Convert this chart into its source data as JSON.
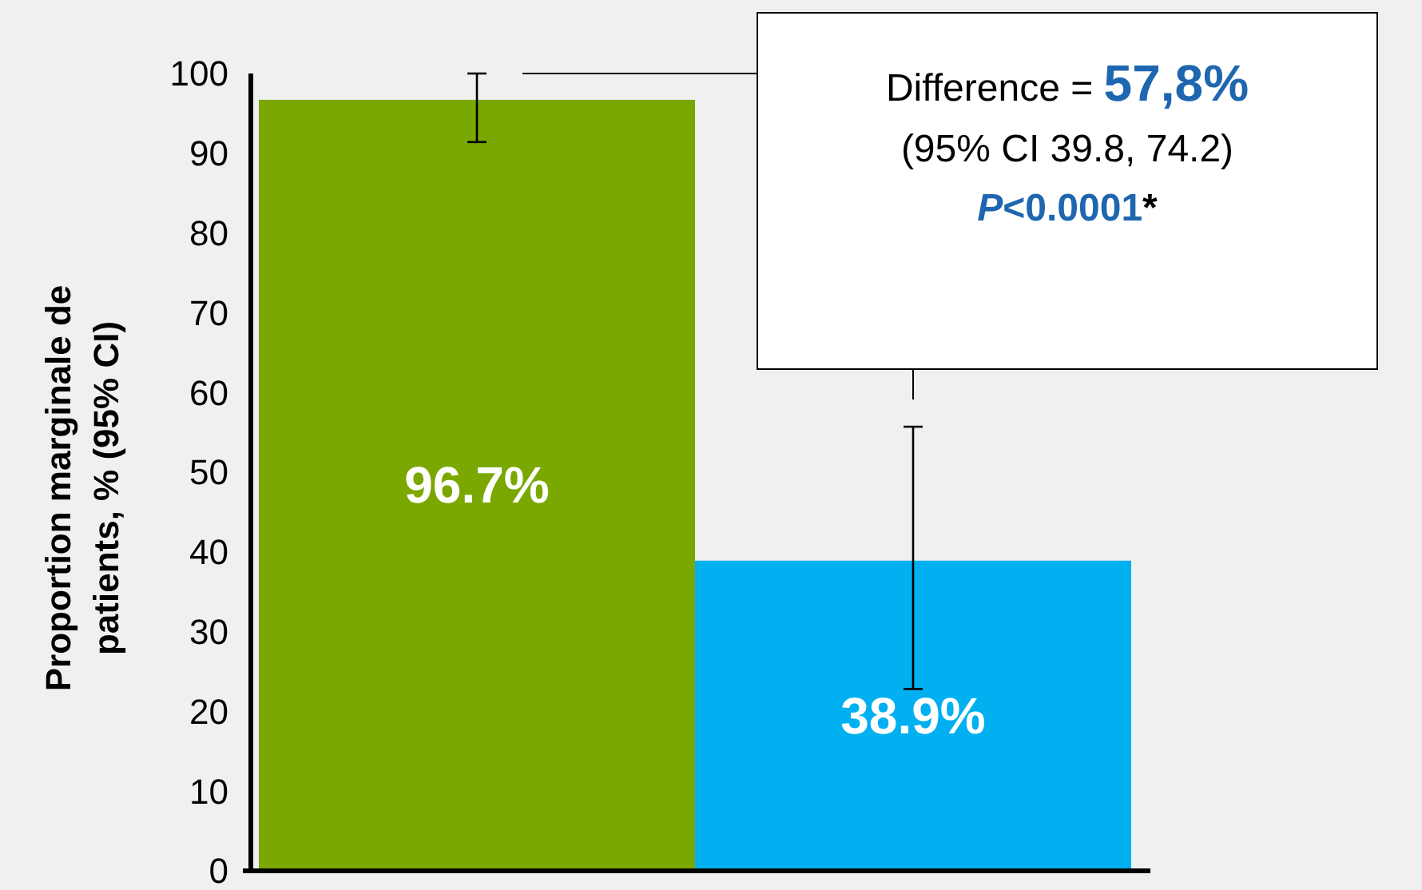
{
  "chart_data": {
    "type": "bar",
    "ylabel": "Proportion marginale de patients, % (95% CI)",
    "categories": [
      null,
      null
    ],
    "values": [
      96.7,
      38.9
    ],
    "colors": [
      "#7aa800",
      "#00b0f0"
    ],
    "errors": [
      [
        91.4,
        100
      ],
      [
        22.8,
        55.7
      ]
    ],
    "value_labels": [
      "96.7%",
      "38.9%"
    ],
    "ylim": [
      0,
      100
    ],
    "yticks": [
      0,
      10,
      20,
      30,
      40,
      50,
      60,
      70,
      80,
      90,
      100
    ],
    "annotations": [
      "Difference = 57,8%",
      "(95% CI 39.8, 74.2)",
      "P<0.0001*"
    ]
  }
}
